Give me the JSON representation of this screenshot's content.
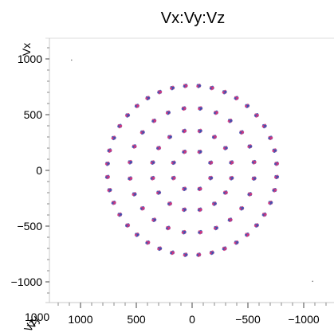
{
  "chart_data": {
    "type": "scatter",
    "title": "Vx:Vy:Vz",
    "xlabel": "Vy",
    "ylabel": "Vx",
    "zlabel": "Vz",
    "xlim": [
      1250,
      -1250
    ],
    "ylim": [
      -1250,
      1250
    ],
    "x_ticks": [
      1000,
      500,
      0,
      -500,
      -1000
    ],
    "x_tick_labels": [
      "1000",
      "500",
      "0",
      "−500",
      "−1000"
    ],
    "y_ticks": [
      1000,
      500,
      0,
      -500,
      -1000
    ],
    "y_tick_labels": [
      "1000",
      "500",
      "0",
      "−500",
      "−1000"
    ],
    "z_tick_labels_overlap": "1000",
    "grid": false,
    "legend": false,
    "marker_colors": [
      "#d6337a",
      "#3a4fb0"
    ],
    "rings": [
      {
        "radius": 760,
        "count": 40
      },
      {
        "radius": 560,
        "count": 24
      },
      {
        "radius": 360,
        "count": 16
      },
      {
        "radius": 180,
        "count": 8
      }
    ],
    "extra_points": [
      {
        "x": 1080,
        "y": 990
      },
      {
        "x": -1080,
        "y": -995
      }
    ]
  }
}
